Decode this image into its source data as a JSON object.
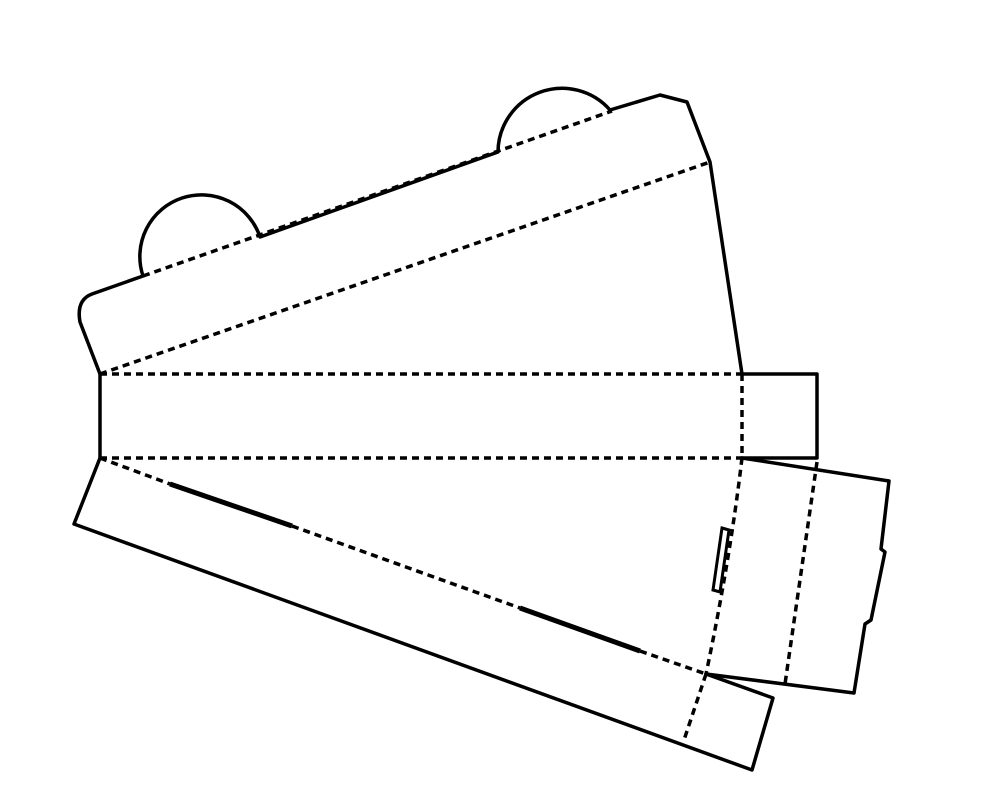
{
  "diagram": {
    "subject": "box-dieline",
    "cut_color": "#000000",
    "fold_color": "#000000",
    "background": "#ffffff",
    "line_styles": {
      "cut": "solid",
      "fold": "dashed"
    }
  }
}
